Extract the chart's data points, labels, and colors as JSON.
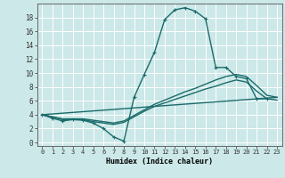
{
  "xlabel": "Humidex (Indice chaleur)",
  "background_color": "#cce8e8",
  "grid_color": "#ffffff",
  "line_color": "#1a6b6b",
  "x_ticks": [
    0,
    1,
    2,
    3,
    4,
    5,
    6,
    7,
    8,
    9,
    10,
    11,
    12,
    13,
    14,
    15,
    16,
    17,
    18,
    19,
    20,
    21,
    22,
    23
  ],
  "y_ticks": [
    0,
    2,
    4,
    6,
    8,
    10,
    12,
    14,
    16,
    18
  ],
  "ylim": [
    -0.5,
    20.0
  ],
  "xlim": [
    -0.5,
    23.5
  ],
  "series": [
    {
      "x": [
        0,
        1,
        2,
        3,
        4,
        5,
        6,
        7,
        8,
        9,
        10,
        11,
        12,
        13,
        14,
        15,
        16,
        17,
        18,
        19,
        20,
        21,
        22,
        23
      ],
      "y": [
        4.0,
        3.5,
        3.1,
        3.3,
        3.2,
        2.8,
        2.0,
        0.8,
        0.2,
        6.5,
        9.8,
        13.0,
        17.7,
        19.1,
        19.4,
        18.9,
        17.8,
        10.8,
        10.8,
        9.5,
        9.2,
        6.3,
        6.3,
        null
      ],
      "marker": true,
      "linewidth": 1.0
    },
    {
      "x": [
        0,
        23
      ],
      "y": [
        4.0,
        6.5
      ],
      "marker": false,
      "linewidth": 1.0
    },
    {
      "x": [
        0,
        1,
        2,
        3,
        4,
        5,
        6,
        7,
        8,
        9,
        10,
        11,
        12,
        13,
        14,
        15,
        16,
        17,
        18,
        19,
        20,
        21,
        22,
        23
      ],
      "y": [
        4.0,
        3.7,
        3.4,
        3.4,
        3.4,
        3.2,
        3.0,
        2.8,
        3.1,
        3.9,
        4.7,
        5.5,
        6.1,
        6.7,
        7.3,
        7.8,
        8.4,
        9.0,
        9.5,
        9.8,
        9.5,
        8.2,
        6.8,
        6.5
      ],
      "marker": false,
      "linewidth": 1.0
    },
    {
      "x": [
        0,
        1,
        2,
        3,
        4,
        5,
        6,
        7,
        8,
        9,
        10,
        11,
        12,
        13,
        14,
        15,
        16,
        17,
        18,
        19,
        20,
        21,
        22,
        23
      ],
      "y": [
        4.0,
        3.7,
        3.3,
        3.3,
        3.3,
        3.0,
        2.8,
        2.6,
        2.9,
        3.7,
        4.5,
        5.2,
        5.7,
        6.2,
        6.7,
        7.2,
        7.7,
        8.1,
        8.6,
        9.0,
        8.7,
        7.4,
        6.3,
        6.1
      ],
      "marker": false,
      "linewidth": 1.0
    }
  ]
}
